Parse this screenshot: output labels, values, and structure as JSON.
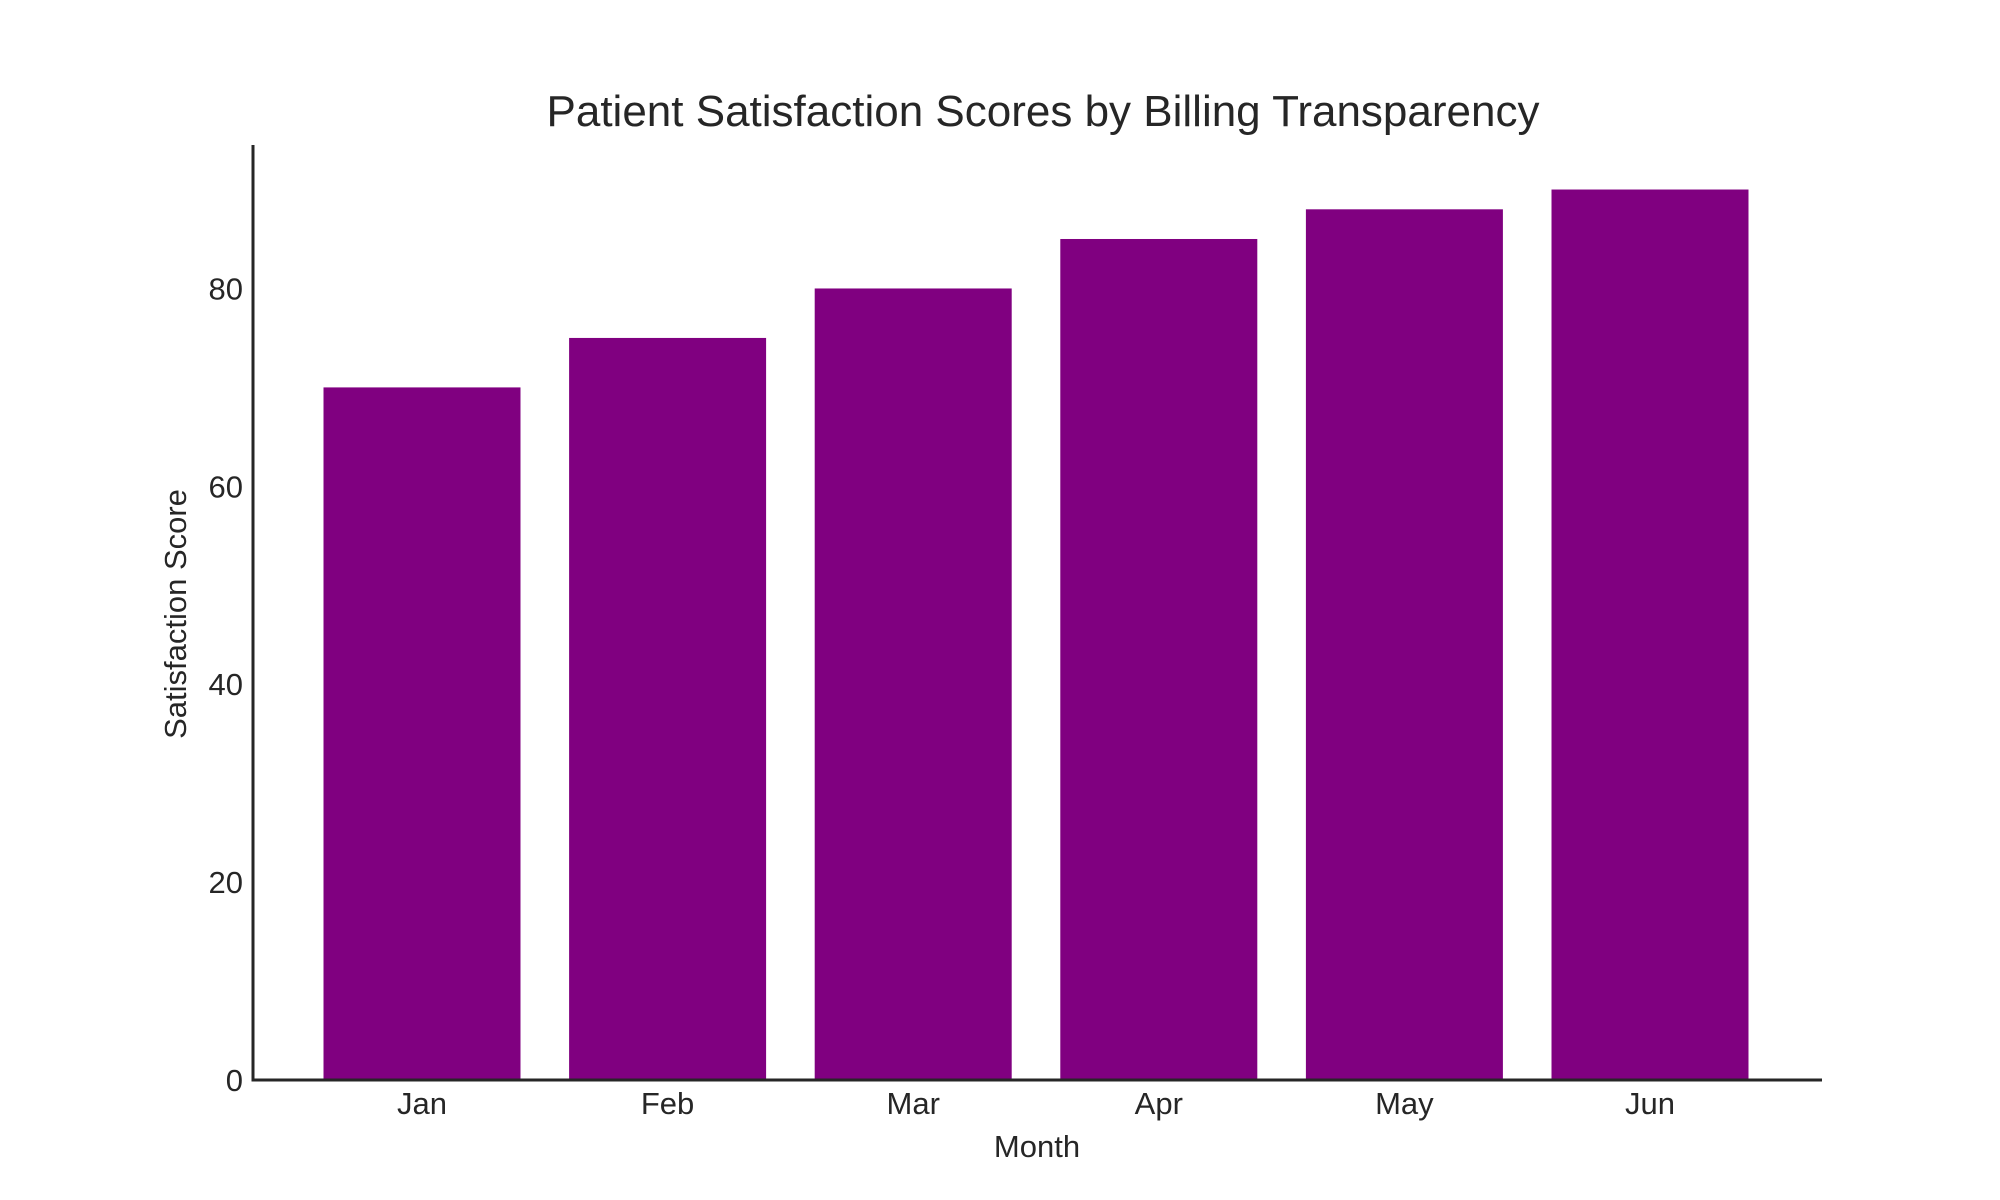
{
  "chart_data": {
    "type": "bar",
    "title": "Patient Satisfaction Scores by Billing Transparency",
    "xlabel": "Month",
    "ylabel": "Satisfaction Score",
    "categories": [
      "Jan",
      "Feb",
      "Mar",
      "Apr",
      "May",
      "Jun"
    ],
    "values": [
      70,
      75,
      80,
      85,
      88,
      90
    ],
    "ylim": [
      0,
      94.5
    ],
    "yticks": [
      0,
      20,
      40,
      60,
      80
    ],
    "grid": false,
    "legend": "none",
    "bar_color": "#800080",
    "axis_color": "#262626",
    "text_color": "#262626"
  }
}
